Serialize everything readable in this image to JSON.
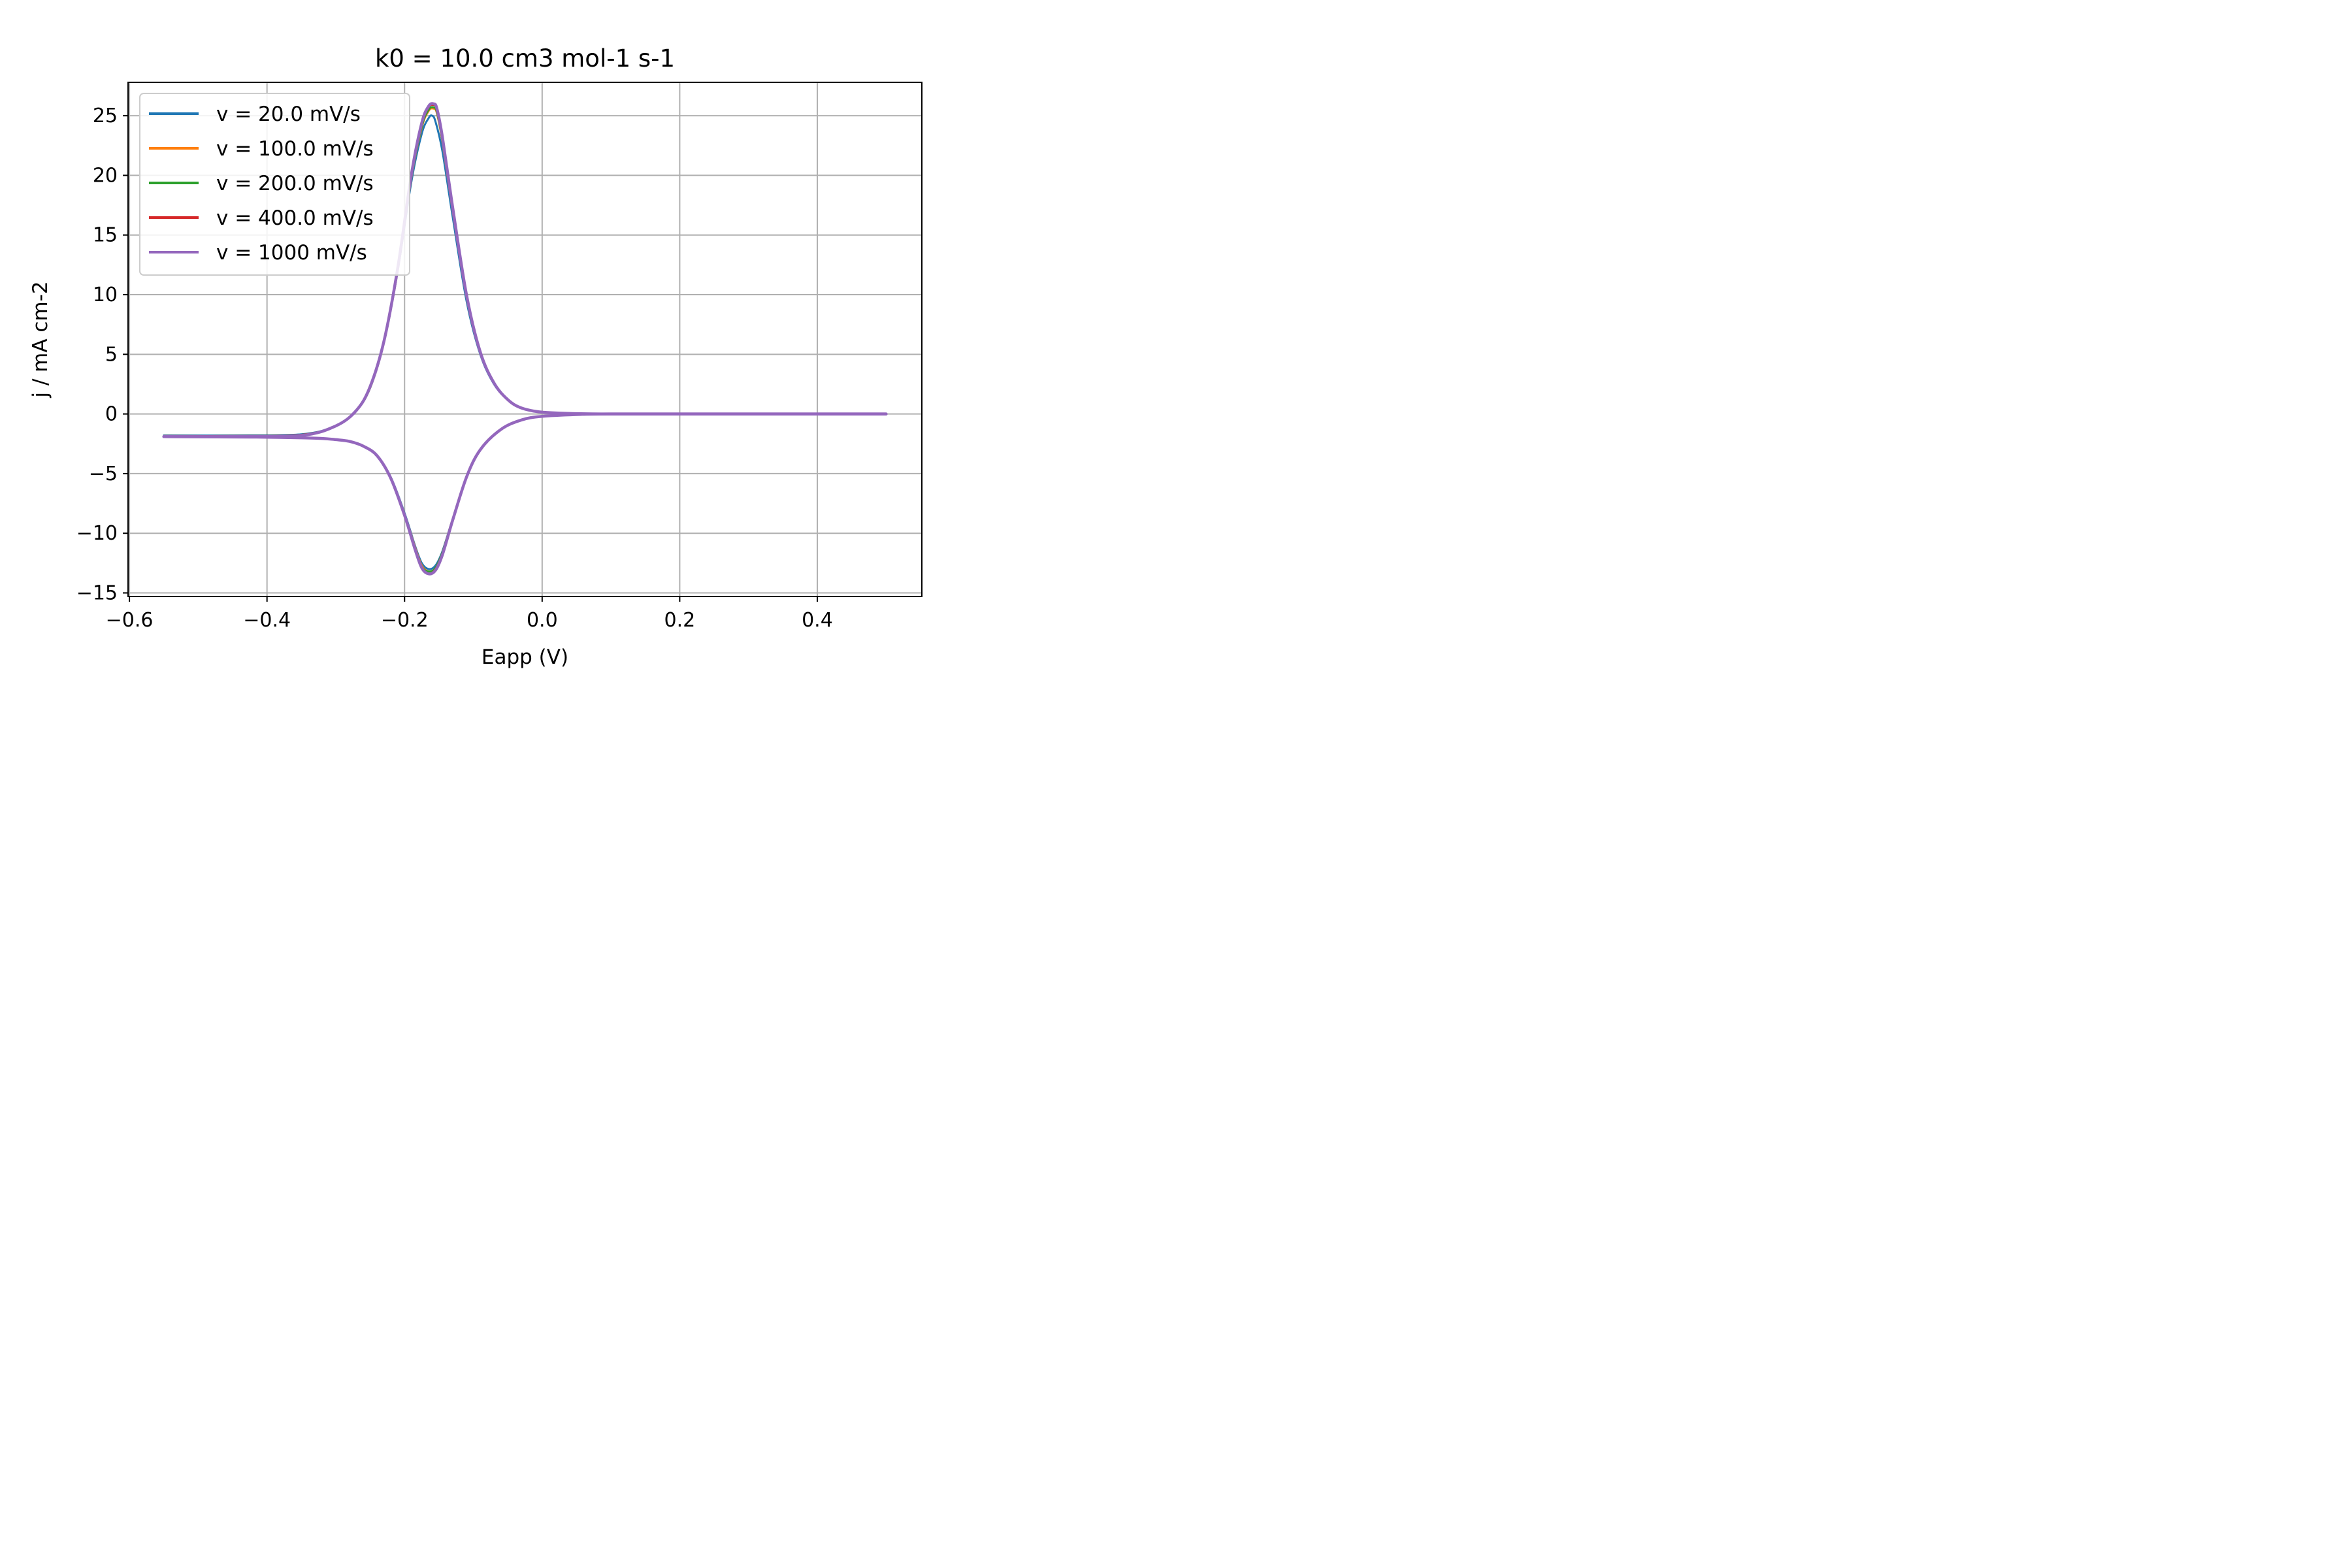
{
  "chart_data": {
    "type": "line",
    "title": "k0 = 10.0 cm3 mol-1 s-1",
    "xlabel": "Eapp (V)",
    "ylabel": "j / mA cm-2",
    "xlim": [
      -0.602,
      0.552
    ],
    "ylim": [
      -15.3,
      27.8
    ],
    "xticks": [
      -0.6,
      -0.4,
      -0.2,
      0.0,
      0.2,
      0.4
    ],
    "xtick_labels": [
      "−0.6",
      "−0.4",
      "−0.2",
      "0.0",
      "0.2",
      "0.4"
    ],
    "yticks": [
      -15,
      -10,
      -5,
      0,
      5,
      10,
      15,
      20,
      25
    ],
    "ytick_labels": [
      "−15",
      "−10",
      "−5",
      "0",
      "5",
      "10",
      "15",
      "20",
      "25"
    ],
    "grid": true,
    "legend_position": "upper-left",
    "colors": [
      "#1f77b4",
      "#ff7f0e",
      "#2ca02c",
      "#d62728",
      "#9467bd"
    ],
    "series": [
      {
        "name": "v = 20.0 mV/s",
        "color": "#1f77b4",
        "anodic": {
          "E": [
            -0.55,
            -0.45,
            -0.35,
            -0.3,
            -0.27,
            -0.25,
            -0.23,
            -0.21,
            -0.19,
            -0.175,
            -0.165,
            -0.16,
            -0.155,
            -0.145,
            -0.13,
            -0.11,
            -0.09,
            -0.07,
            -0.05,
            -0.03,
            0.0,
            0.05,
            0.1,
            0.2,
            0.3,
            0.4,
            0.5
          ],
          "j": [
            -1.8,
            -1.8,
            -1.7,
            -1.0,
            0.3,
            2.2,
            6.0,
            12.0,
            19.5,
            23.5,
            24.8,
            25.0,
            24.5,
            22.0,
            16.5,
            9.5,
            5.0,
            2.5,
            1.2,
            0.5,
            0.15,
            0.03,
            0.0,
            0.0,
            0.0,
            0.0,
            0.0
          ]
        },
        "cathodic": {
          "E": [
            0.5,
            0.3,
            0.1,
            0.05,
            0.0,
            -0.03,
            -0.06,
            -0.09,
            -0.11,
            -0.13,
            -0.145,
            -0.155,
            -0.165,
            -0.175,
            -0.185,
            -0.2,
            -0.22,
            -0.24,
            -0.26,
            -0.28,
            -0.3,
            -0.32,
            -0.35,
            -0.4,
            -0.45,
            -0.55
          ],
          "j": [
            0.0,
            0.0,
            0.0,
            -0.05,
            -0.2,
            -0.5,
            -1.3,
            -3.0,
            -5.3,
            -8.8,
            -11.5,
            -12.7,
            -13.0,
            -12.5,
            -11.0,
            -8.3,
            -5.3,
            -3.5,
            -2.7,
            -2.3,
            -2.15,
            -2.05,
            -2.0,
            -1.95,
            -1.93,
            -1.9
          ]
        }
      },
      {
        "name": "v = 100.0 mV/s",
        "color": "#ff7f0e",
        "anodic": {
          "E": [
            -0.55,
            -0.45,
            -0.35,
            -0.3,
            -0.27,
            -0.25,
            -0.23,
            -0.21,
            -0.19,
            -0.175,
            -0.165,
            -0.158,
            -0.153,
            -0.145,
            -0.13,
            -0.11,
            -0.09,
            -0.07,
            -0.05,
            -0.03,
            0.0,
            0.05,
            0.1,
            0.2,
            0.3,
            0.4,
            0.5
          ],
          "j": [
            -1.85,
            -1.85,
            -1.75,
            -1.0,
            0.3,
            2.2,
            6.0,
            12.0,
            19.8,
            24.0,
            25.4,
            25.6,
            25.2,
            22.8,
            17.0,
            9.8,
            5.1,
            2.6,
            1.2,
            0.5,
            0.15,
            0.03,
            0.0,
            0.0,
            0.0,
            0.0,
            0.0
          ]
        },
        "cathodic": {
          "E": [
            0.5,
            0.3,
            0.1,
            0.05,
            0.0,
            -0.03,
            -0.06,
            -0.09,
            -0.11,
            -0.13,
            -0.145,
            -0.155,
            -0.165,
            -0.175,
            -0.185,
            -0.2,
            -0.22,
            -0.24,
            -0.26,
            -0.28,
            -0.3,
            -0.32,
            -0.35,
            -0.4,
            -0.45,
            -0.55
          ],
          "j": [
            0.0,
            0.0,
            0.0,
            -0.05,
            -0.2,
            -0.5,
            -1.3,
            -3.0,
            -5.3,
            -8.8,
            -11.6,
            -12.9,
            -13.2,
            -12.7,
            -11.1,
            -8.4,
            -5.35,
            -3.5,
            -2.7,
            -2.3,
            -2.15,
            -2.05,
            -2.0,
            -1.95,
            -1.93,
            -1.9
          ]
        }
      },
      {
        "name": "v = 200.0 mV/s",
        "color": "#2ca02c",
        "anodic": {
          "E": [
            -0.55,
            -0.45,
            -0.35,
            -0.3,
            -0.27,
            -0.25,
            -0.23,
            -0.21,
            -0.19,
            -0.175,
            -0.165,
            -0.158,
            -0.153,
            -0.145,
            -0.13,
            -0.11,
            -0.09,
            -0.07,
            -0.05,
            -0.03,
            0.0,
            0.05,
            0.1,
            0.2,
            0.3,
            0.4,
            0.5
          ],
          "j": [
            -1.85,
            -1.85,
            -1.75,
            -1.0,
            0.3,
            2.2,
            6.0,
            12.0,
            19.8,
            24.1,
            25.5,
            25.7,
            25.3,
            22.9,
            17.1,
            9.8,
            5.1,
            2.6,
            1.2,
            0.5,
            0.15,
            0.03,
            0.0,
            0.0,
            0.0,
            0.0,
            0.0
          ]
        },
        "cathodic": {
          "E": [
            0.5,
            0.3,
            0.1,
            0.05,
            0.0,
            -0.03,
            -0.06,
            -0.09,
            -0.11,
            -0.13,
            -0.145,
            -0.155,
            -0.165,
            -0.175,
            -0.185,
            -0.2,
            -0.22,
            -0.24,
            -0.26,
            -0.28,
            -0.3,
            -0.32,
            -0.35,
            -0.4,
            -0.45,
            -0.55
          ],
          "j": [
            0.0,
            0.0,
            0.0,
            -0.05,
            -0.2,
            -0.5,
            -1.3,
            -3.0,
            -5.3,
            -8.8,
            -11.6,
            -12.9,
            -13.2,
            -12.8,
            -11.2,
            -8.4,
            -5.35,
            -3.5,
            -2.7,
            -2.3,
            -2.15,
            -2.05,
            -2.0,
            -1.95,
            -1.93,
            -1.9
          ]
        }
      },
      {
        "name": "v = 400.0 mV/s",
        "color": "#d62728",
        "anodic": {
          "E": [
            -0.55,
            -0.45,
            -0.35,
            -0.3,
            -0.27,
            -0.25,
            -0.23,
            -0.21,
            -0.19,
            -0.175,
            -0.165,
            -0.158,
            -0.153,
            -0.145,
            -0.13,
            -0.11,
            -0.09,
            -0.07,
            -0.05,
            -0.03,
            0.0,
            0.05,
            0.1,
            0.2,
            0.3,
            0.4,
            0.5
          ],
          "j": [
            -1.85,
            -1.85,
            -1.75,
            -1.0,
            0.3,
            2.3,
            6.1,
            12.2,
            20.0,
            24.3,
            25.7,
            25.9,
            25.5,
            23.1,
            17.2,
            9.9,
            5.1,
            2.6,
            1.2,
            0.5,
            0.15,
            0.03,
            0.0,
            0.0,
            0.0,
            0.0,
            0.0
          ]
        },
        "cathodic": {
          "E": [
            0.5,
            0.3,
            0.1,
            0.05,
            0.0,
            -0.03,
            -0.06,
            -0.09,
            -0.11,
            -0.13,
            -0.145,
            -0.155,
            -0.165,
            -0.175,
            -0.185,
            -0.2,
            -0.22,
            -0.24,
            -0.26,
            -0.28,
            -0.3,
            -0.32,
            -0.35,
            -0.4,
            -0.45,
            -0.55
          ],
          "j": [
            0.0,
            0.0,
            0.0,
            -0.05,
            -0.2,
            -0.5,
            -1.3,
            -3.0,
            -5.3,
            -8.8,
            -11.7,
            -13.0,
            -13.4,
            -12.9,
            -11.3,
            -8.5,
            -5.4,
            -3.5,
            -2.7,
            -2.3,
            -2.15,
            -2.05,
            -2.0,
            -1.95,
            -1.93,
            -1.9
          ]
        }
      },
      {
        "name": "v = 1000 mV/s",
        "color": "#9467bd",
        "anodic": {
          "E": [
            -0.55,
            -0.45,
            -0.35,
            -0.3,
            -0.27,
            -0.25,
            -0.23,
            -0.21,
            -0.19,
            -0.175,
            -0.165,
            -0.158,
            -0.153,
            -0.145,
            -0.13,
            -0.11,
            -0.09,
            -0.07,
            -0.05,
            -0.03,
            0.0,
            0.05,
            0.1,
            0.2,
            0.3,
            0.4,
            0.5
          ],
          "j": [
            -1.9,
            -1.9,
            -1.8,
            -1.0,
            0.3,
            2.3,
            6.1,
            12.2,
            20.1,
            24.4,
            25.8,
            26.0,
            25.6,
            23.2,
            17.3,
            10.0,
            5.2,
            2.6,
            1.2,
            0.5,
            0.15,
            0.03,
            0.0,
            0.0,
            0.0,
            0.0,
            0.0
          ]
        },
        "cathodic": {
          "E": [
            0.5,
            0.3,
            0.1,
            0.05,
            0.0,
            -0.03,
            -0.06,
            -0.09,
            -0.11,
            -0.13,
            -0.145,
            -0.155,
            -0.165,
            -0.175,
            -0.185,
            -0.2,
            -0.22,
            -0.24,
            -0.26,
            -0.28,
            -0.3,
            -0.32,
            -0.35,
            -0.4,
            -0.45,
            -0.55
          ],
          "j": [
            0.0,
            0.0,
            0.0,
            -0.05,
            -0.2,
            -0.5,
            -1.3,
            -3.0,
            -5.3,
            -8.9,
            -11.8,
            -13.1,
            -13.4,
            -12.9,
            -11.3,
            -8.5,
            -5.4,
            -3.5,
            -2.7,
            -2.3,
            -2.15,
            -2.05,
            -2.0,
            -1.95,
            -1.93,
            -1.9
          ]
        }
      }
    ]
  }
}
